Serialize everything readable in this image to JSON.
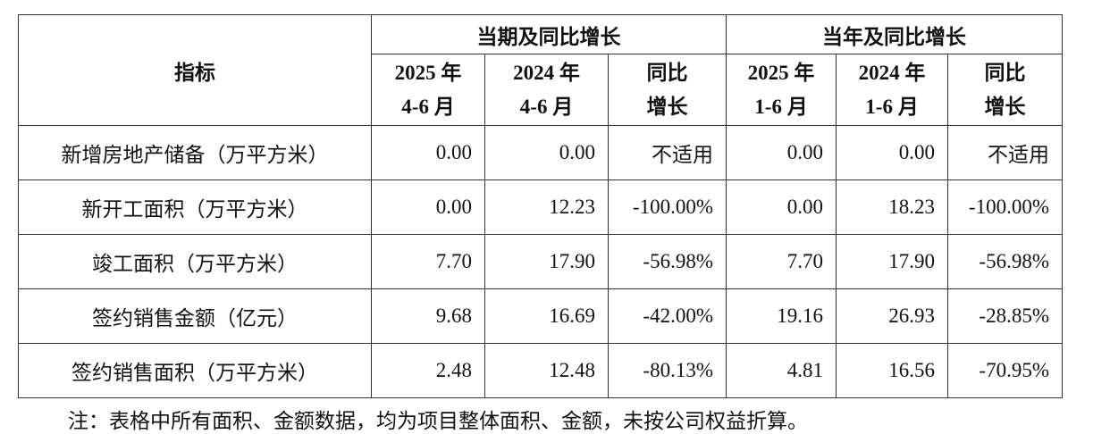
{
  "table": {
    "corner": "指标",
    "groups": [
      "当期及同比增长",
      "当年及同比增长"
    ],
    "columns": [
      [
        "2025 年",
        "4-6 月"
      ],
      [
        "2024 年",
        "4-6 月"
      ],
      [
        "同比",
        "增长"
      ],
      [
        "2025 年",
        "1-6 月"
      ],
      [
        "2024 年",
        "1-6 月"
      ],
      [
        "同比",
        "增长"
      ]
    ],
    "rows": [
      [
        "新增房地产储备（万平方米）",
        "0.00",
        "0.00",
        "不适用",
        "0.00",
        "0.00",
        "不适用"
      ],
      [
        "新开工面积（万平方米）",
        "0.00",
        "12.23",
        "-100.00%",
        "0.00",
        "18.23",
        "-100.00%"
      ],
      [
        "竣工面积（万平方米）",
        "7.70",
        "17.90",
        "-56.98%",
        "7.70",
        "17.90",
        "-56.98%"
      ],
      [
        "签约销售金额（亿元）",
        "9.68",
        "16.69",
        "-42.00%",
        "19.16",
        "26.93",
        "-28.85%"
      ],
      [
        "签约销售面积（万平方米）",
        "2.48",
        "12.48",
        "-80.13%",
        "4.81",
        "16.56",
        "-70.95%"
      ]
    ]
  },
  "note": "注：表格中所有面积、金额数据，均为项目整体面积、金额，未按公司权益折算。"
}
